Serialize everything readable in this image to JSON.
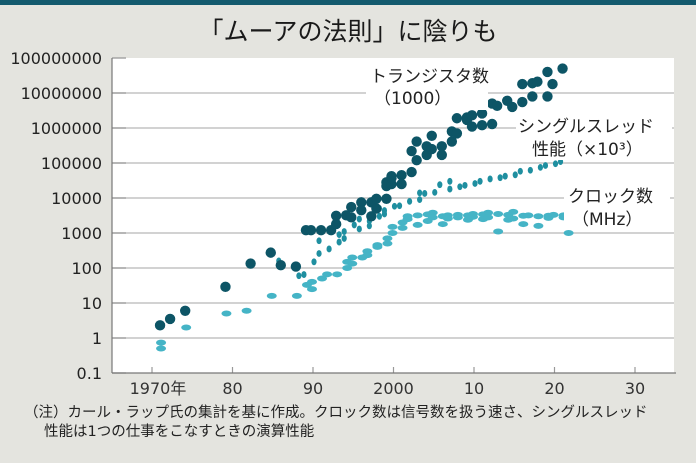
{
  "header": {
    "title": "「ムーアの法則」に陰りも"
  },
  "colors": {
    "topbar": "#135a6e",
    "transistors": "#0d5566",
    "single_thread": "#1f8fa0",
    "clock": "#45b4c6",
    "grid": "#b8b8b8",
    "background": "#e4e4df"
  },
  "chart_data": {
    "type": "scatter",
    "title": "「ムーアの法則」に陰りも",
    "yscale": "log",
    "ylim": [
      0.1,
      100000000
    ],
    "xlim": [
      1965,
      2035
    ],
    "grid": "horizontal",
    "yticks": [
      "100000000",
      "10000000",
      "1000000",
      "100000",
      "10000",
      "1000",
      "100",
      "10",
      "1",
      "0.1"
    ],
    "ytick_values": [
      100000000,
      10000000,
      1000000,
      100000,
      10000,
      1000,
      100,
      10,
      1,
      0.1
    ],
    "xticks": [
      "1970年",
      "80",
      "90",
      "2000",
      "10",
      "20",
      "30"
    ],
    "xtick_values": [
      1970,
      1980,
      1990,
      2000,
      2010,
      2020,
      2030
    ],
    "series": [
      {
        "name": "トランジスタ数",
        "label_line1": "トランジスタ数",
        "label_line2": "（1000）",
        "marker": "circle",
        "points": [
          [
            1971,
            2.3
          ],
          [
            1972,
            3.5
          ],
          [
            1974,
            6
          ],
          [
            1979,
            29
          ],
          [
            1982,
            134
          ],
          [
            1985,
            275
          ],
          [
            1986,
            120
          ],
          [
            1988,
            110
          ],
          [
            1989,
            1200
          ],
          [
            1990,
            1200
          ],
          [
            1991,
            1200
          ],
          [
            1992,
            1200
          ],
          [
            1993,
            3100
          ],
          [
            1993,
            1800
          ],
          [
            1994,
            3200
          ],
          [
            1995,
            5500
          ],
          [
            1995,
            2800
          ],
          [
            1996,
            7500
          ],
          [
            1996,
            4500
          ],
          [
            1997,
            7500
          ],
          [
            1997,
            3000
          ],
          [
            1998,
            9500
          ],
          [
            1998,
            5000
          ],
          [
            1999,
            22000
          ],
          [
            1999,
            9500
          ],
          [
            1999,
            28000
          ],
          [
            2000,
            25000
          ],
          [
            2000,
            37000
          ],
          [
            2000,
            42000
          ],
          [
            2001,
            45000
          ],
          [
            2001,
            25000
          ],
          [
            2002,
            55000
          ],
          [
            2002,
            220000
          ],
          [
            2003,
            120000
          ],
          [
            2003,
            410000
          ],
          [
            2004,
            170000
          ],
          [
            2004,
            300000
          ],
          [
            2005,
            250000
          ],
          [
            2005,
            600000
          ],
          [
            2006,
            300000
          ],
          [
            2006,
            170000
          ],
          [
            2007,
            800000
          ],
          [
            2007,
            410000
          ],
          [
            2008,
            700000
          ],
          [
            2008,
            1900000
          ],
          [
            2009,
            1700000
          ],
          [
            2009,
            2000000
          ],
          [
            2010,
            1100000
          ],
          [
            2010,
            2300000
          ],
          [
            2011,
            1200000
          ],
          [
            2011,
            2600000
          ],
          [
            2012,
            1300000
          ],
          [
            2012,
            5000000
          ],
          [
            2013,
            4300000
          ],
          [
            2014,
            6000000
          ],
          [
            2015,
            4000000
          ],
          [
            2016,
            5500000
          ],
          [
            2016,
            18000000
          ],
          [
            2017,
            8000000
          ],
          [
            2017,
            19000000
          ],
          [
            2018,
            21000000
          ],
          [
            2019,
            8000000
          ],
          [
            2019,
            40000000
          ],
          [
            2020,
            18000000
          ],
          [
            2021,
            50000000
          ]
        ]
      },
      {
        "name": "シングルスレッド性能（×10³）",
        "label_line1": "シングルスレッド",
        "label_line2": "性能（×10³）",
        "marker": "small-oval",
        "points": [
          [
            1986,
            160
          ],
          [
            1988,
            60
          ],
          [
            1989,
            65
          ],
          [
            1990,
            150
          ],
          [
            1991,
            260
          ],
          [
            1991,
            600
          ],
          [
            1992,
            350
          ],
          [
            1993,
            550
          ],
          [
            1993,
            900
          ],
          [
            1994,
            1100
          ],
          [
            1994,
            700
          ],
          [
            1995,
            1700
          ],
          [
            1996,
            1300
          ],
          [
            1996,
            2500
          ],
          [
            1997,
            2200
          ],
          [
            1997,
            1600
          ],
          [
            1998,
            3000
          ],
          [
            1998,
            5000
          ],
          [
            1999,
            4400
          ],
          [
            1999,
            3500
          ],
          [
            2000,
            5800
          ],
          [
            2001,
            6000
          ],
          [
            2002,
            8000
          ],
          [
            2003,
            9000
          ],
          [
            2003,
            14000
          ],
          [
            2004,
            13500
          ],
          [
            2005,
            14500
          ],
          [
            2006,
            24000
          ],
          [
            2007,
            30000
          ],
          [
            2007,
            18000
          ],
          [
            2008,
            21000
          ],
          [
            2009,
            23000
          ],
          [
            2010,
            26000
          ],
          [
            2011,
            30000
          ],
          [
            2012,
            35000
          ],
          [
            2013,
            38000
          ],
          [
            2014,
            42000
          ],
          [
            2015,
            46000
          ],
          [
            2016,
            58000
          ],
          [
            2017,
            62000
          ],
          [
            2018,
            75000
          ],
          [
            2019,
            85000
          ],
          [
            2020,
            95000
          ],
          [
            2021,
            110000
          ]
        ]
      },
      {
        "name": "クロック数（MHz）",
        "label_line1": "クロック数",
        "label_line2": "（MHz）",
        "marker": "ellipse",
        "points": [
          [
            1971,
            0.74
          ],
          [
            1971,
            0.5
          ],
          [
            1974,
            2
          ],
          [
            1979,
            5
          ],
          [
            1982,
            6
          ],
          [
            1985,
            16
          ],
          [
            1988,
            16
          ],
          [
            1989,
            33
          ],
          [
            1990,
            25
          ],
          [
            1990,
            40
          ],
          [
            1991,
            50
          ],
          [
            1992,
            66
          ],
          [
            1993,
            66
          ],
          [
            1994,
            100
          ],
          [
            1994,
            150
          ],
          [
            1995,
            133
          ],
          [
            1995,
            200
          ],
          [
            1996,
            200
          ],
          [
            1997,
            300
          ],
          [
            1997,
            233
          ],
          [
            1998,
            450
          ],
          [
            1998,
            400
          ],
          [
            1999,
            500
          ],
          [
            1999,
            700
          ],
          [
            2000,
            1000
          ],
          [
            2000,
            1500
          ],
          [
            2001,
            1400
          ],
          [
            2001,
            2000
          ],
          [
            2002,
            2500
          ],
          [
            2002,
            3000
          ],
          [
            2003,
            3200
          ],
          [
            2003,
            1700
          ],
          [
            2004,
            3400
          ],
          [
            2004,
            2200
          ],
          [
            2005,
            3800
          ],
          [
            2005,
            2800
          ],
          [
            2006,
            3000
          ],
          [
            2006,
            1800
          ],
          [
            2007,
            3200
          ],
          [
            2007,
            2600
          ],
          [
            2008,
            3300
          ],
          [
            2008,
            2800
          ],
          [
            2009,
            3200
          ],
          [
            2009,
            2400
          ],
          [
            2010,
            3500
          ],
          [
            2010,
            2900
          ],
          [
            2011,
            3400
          ],
          [
            2011,
            2500
          ],
          [
            2012,
            3800
          ],
          [
            2012,
            2800
          ],
          [
            2013,
            3500
          ],
          [
            2013,
            1100
          ],
          [
            2014,
            3300
          ],
          [
            2014,
            2400
          ],
          [
            2015,
            4000
          ],
          [
            2015,
            2600
          ],
          [
            2016,
            3100
          ],
          [
            2016,
            1800
          ],
          [
            2017,
            3200
          ],
          [
            2018,
            3000
          ],
          [
            2018,
            1600
          ],
          [
            2019,
            3100
          ],
          [
            2019,
            2700
          ],
          [
            2020,
            3300
          ],
          [
            2021,
            2800
          ],
          [
            2022,
            1000
          ],
          [
            2021,
            3200
          ]
        ]
      }
    ]
  },
  "footnote": {
    "line1": "（注）カール・ラップ氏の集計を基に作成。クロック数は信号数を扱う速さ、シングルスレッド",
    "line2": "性能は1つの仕事をこなすときの演算性能"
  }
}
